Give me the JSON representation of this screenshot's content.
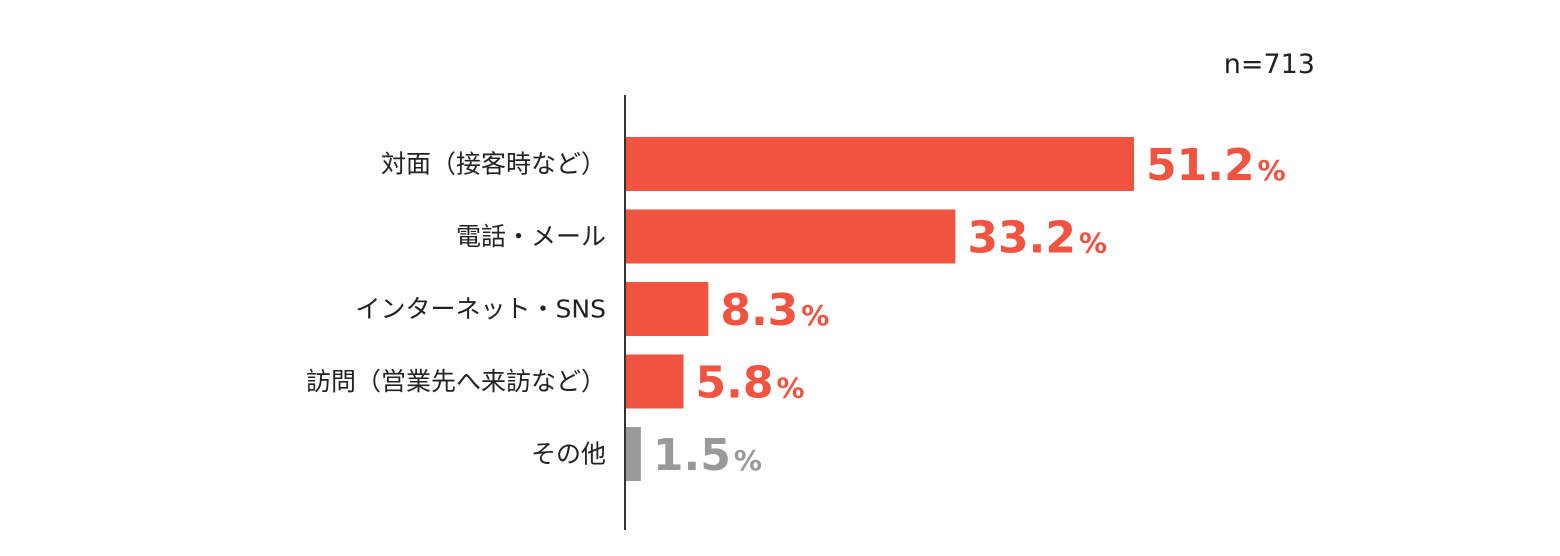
{
  "chart_data": {
    "type": "bar",
    "orientation": "horizontal",
    "sample_size": "n=713",
    "unit": "%",
    "categories": [
      "対面（接客時など）",
      "電話・メール",
      "インターネット・SNS",
      "訪問（営業先へ来訪など）",
      "その他"
    ],
    "values": [
      51.2,
      33.2,
      8.3,
      5.8,
      1.5
    ],
    "value_labels": [
      "51.2",
      "33.2",
      "8.3",
      "5.8",
      "1.5"
    ],
    "colors": [
      "#f05340",
      "#f05340",
      "#f05340",
      "#f05340",
      "#999999"
    ],
    "xlim": [
      0,
      51.2
    ],
    "grid": false
  }
}
